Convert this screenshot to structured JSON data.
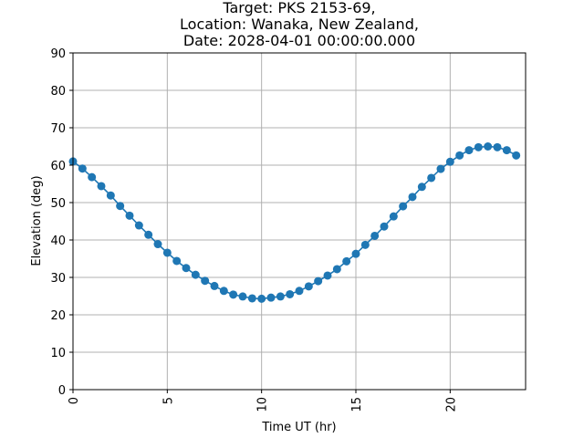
{
  "chart_data": {
    "type": "line",
    "title_lines": [
      "Target: PKS 2153-69,",
      "Location: Wanaka, New Zealand,",
      "Date: 2028-04-01 00:00:00.000"
    ],
    "xlabel": "Time UT (hr)",
    "ylabel": "Elevation (deg)",
    "xlim": [
      0,
      24
    ],
    "ylim": [
      0,
      90
    ],
    "xticks": [
      0,
      5,
      10,
      15,
      20
    ],
    "yticks": [
      0,
      10,
      20,
      30,
      40,
      50,
      60,
      70,
      80,
      90
    ],
    "grid": true,
    "series_color": "#1f77b4",
    "x": [
      0,
      0.5,
      1,
      1.5,
      2,
      2.5,
      3,
      3.5,
      4,
      4.5,
      5,
      5.5,
      6,
      6.5,
      7,
      7.5,
      8,
      8.5,
      9,
      9.5,
      10,
      10.5,
      11,
      11.5,
      12,
      12.5,
      13,
      13.5,
      14,
      14.5,
      15,
      15.5,
      16,
      16.5,
      17,
      17.5,
      18,
      18.5,
      19,
      19.5,
      20,
      20.5,
      21,
      21.5,
      22,
      22.5,
      23,
      23.5
    ],
    "y": [
      61.0,
      59.1,
      56.8,
      54.4,
      51.9,
      49.1,
      46.5,
      43.9,
      41.4,
      38.9,
      36.6,
      34.4,
      32.5,
      30.7,
      29.1,
      27.7,
      26.4,
      25.4,
      24.9,
      24.4,
      24.3,
      24.6,
      24.9,
      25.5,
      26.4,
      27.6,
      29.0,
      30.5,
      32.2,
      34.3,
      36.3,
      38.7,
      41.1,
      43.6,
      46.3,
      49.0,
      51.5,
      54.2,
      56.6,
      59.0,
      60.9,
      62.6,
      64.0,
      64.8,
      65.0,
      64.8,
      64.0,
      62.6
    ]
  }
}
